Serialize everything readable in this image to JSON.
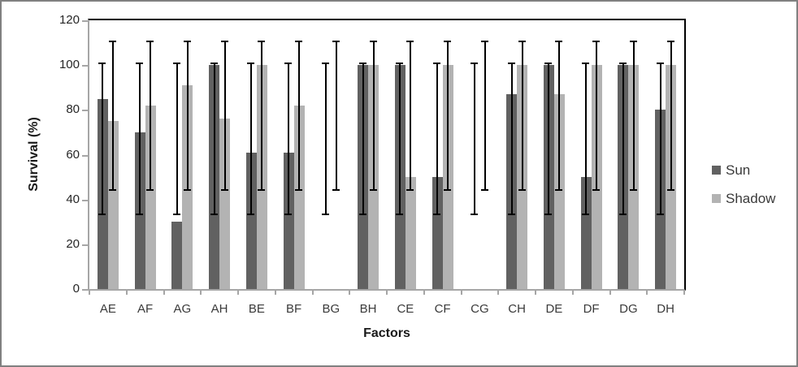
{
  "chart_data": {
    "type": "bar",
    "title": "",
    "xlabel": "Factors",
    "ylabel": "Survival (%)",
    "ylim": [
      0,
      120
    ],
    "yticks": [
      0,
      20,
      40,
      60,
      80,
      100,
      120
    ],
    "categories": [
      "AE",
      "AF",
      "AG",
      "AH",
      "BE",
      "BF",
      "BG",
      "BH",
      "CE",
      "CF",
      "CG",
      "CH",
      "DE",
      "DF",
      "DG",
      "DH"
    ],
    "series": [
      {
        "name": "Sun",
        "color": "#616161",
        "values": [
          85,
          70,
          30,
          100,
          61,
          61,
          0,
          100,
          100,
          50,
          0,
          87,
          100,
          50,
          100,
          80
        ],
        "error_bars": {
          "low": 33,
          "high": 101
        }
      },
      {
        "name": "Shadow",
        "color": "#b3b3b3",
        "values": [
          75,
          82,
          91,
          76,
          100,
          82,
          0,
          100,
          50,
          100,
          0,
          100,
          87,
          100,
          100,
          100
        ],
        "error_bars": {
          "low": 44,
          "high": 111
        }
      }
    ],
    "legend_position": "right",
    "grid": false,
    "error_bar_color": "#000000",
    "axis_line_color": "#a6a6a6",
    "plot_border_color": "#000000"
  }
}
